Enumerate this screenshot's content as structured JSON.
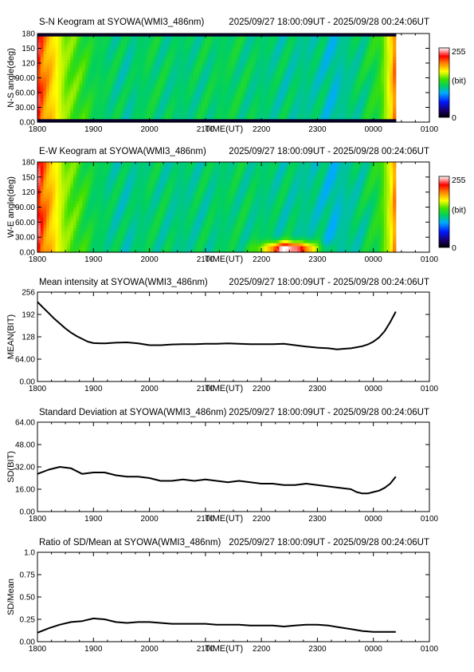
{
  "common": {
    "time_range": "2025/09/27 18:00:09UT - 2025/09/28 00:24:06UT",
    "x_tick_labels": [
      "1800",
      "1900",
      "2000",
      "2100",
      "2200",
      "2300",
      "0000",
      "0100"
    ],
    "xlabel": "TIME(UT)"
  },
  "chart_data": [
    {
      "type": "heatmap",
      "title": "S-N Keogram at SYOWA(WMI3_486nm)",
      "subtitle": "2025/09/27 18:00:09UT - 2025/09/28 00:24:06UT",
      "xlabel": "TIME(UT)",
      "ylabel": "N-S angle(deg)",
      "x_range_hours": [
        18.0,
        25.0
      ],
      "data_end_hours": 24.4,
      "ylim": [
        0,
        180
      ],
      "y_tick_labels": [
        "0.00",
        "30.00",
        "60.00",
        "90.00",
        "120",
        "150",
        "180"
      ],
      "y_tick_values": [
        0,
        30,
        60,
        90,
        120,
        150,
        180
      ],
      "colorbar": {
        "min_label": "0",
        "max_label": "255",
        "unit_label": "(bit)"
      },
      "time_hours": [
        18.0,
        18.1,
        18.3,
        18.5,
        18.8,
        19.0,
        19.3,
        19.6,
        20.0,
        20.5,
        21.0,
        21.5,
        22.0,
        22.5,
        23.0,
        23.3,
        23.5,
        23.8,
        24.1,
        24.3,
        24.4
      ],
      "mean_intensity": [
        230,
        200,
        175,
        150,
        135,
        120,
        115,
        110,
        118,
        112,
        115,
        118,
        112,
        110,
        108,
        100,
        108,
        115,
        130,
        170,
        210
      ],
      "edge_darkening": true
    },
    {
      "type": "heatmap",
      "title": "E-W Keogram at SYOWA(WMI3_486nm)",
      "subtitle": "2025/09/27 18:00:09UT - 2025/09/28 00:24:06UT",
      "xlabel": "TIME(UT)",
      "ylabel": "W-E angle(deg)",
      "x_range_hours": [
        18.0,
        25.0
      ],
      "data_end_hours": 24.4,
      "ylim": [
        0,
        180
      ],
      "y_tick_labels": [
        "0.00",
        "30.00",
        "60.00",
        "90.00",
        "120",
        "150",
        "180"
      ],
      "y_tick_values": [
        0,
        30,
        60,
        90,
        120,
        150,
        180
      ],
      "colorbar": {
        "min_label": "0",
        "max_label": "255",
        "unit_label": "(bit)"
      },
      "time_hours": [
        18.0,
        18.1,
        18.3,
        18.5,
        18.8,
        19.0,
        19.3,
        19.6,
        20.0,
        20.5,
        21.0,
        21.5,
        22.0,
        22.5,
        23.0,
        23.3,
        23.5,
        23.8,
        24.1,
        24.3,
        24.4
      ],
      "mean_intensity": [
        235,
        205,
        175,
        150,
        132,
        118,
        112,
        108,
        115,
        110,
        112,
        115,
        112,
        110,
        106,
        98,
        106,
        112,
        128,
        165,
        205
      ],
      "edge_darkening": false,
      "bright_spot": {
        "time_hours": 22.5,
        "angle_deg": 6,
        "label": ""
      }
    },
    {
      "type": "line",
      "title": "Mean intensity at SYOWA(WMI3_486nm)",
      "subtitle": "2025/09/27 18:00:09UT - 2025/09/28 00:24:06UT",
      "xlabel": "TIME(UT)",
      "ylabel": "MEAN(BIT)",
      "x_range_hours": [
        18.0,
        25.0
      ],
      "ylim": [
        0,
        256
      ],
      "y_tick_labels": [
        "0.00",
        "64.00",
        "128",
        "192",
        "256"
      ],
      "y_tick_values": [
        0,
        64,
        128,
        192,
        256
      ],
      "x": [
        18.0,
        18.1,
        18.2,
        18.3,
        18.4,
        18.5,
        18.6,
        18.7,
        18.8,
        18.9,
        19.0,
        19.2,
        19.4,
        19.6,
        19.8,
        20.0,
        20.2,
        20.4,
        20.6,
        20.8,
        21.0,
        21.2,
        21.4,
        21.6,
        21.8,
        22.0,
        22.2,
        22.4,
        22.6,
        22.8,
        23.0,
        23.2,
        23.35,
        23.5,
        23.6,
        23.7,
        23.8,
        23.9,
        24.0,
        24.1,
        24.2,
        24.3,
        24.4
      ],
      "y": [
        228,
        212,
        196,
        180,
        166,
        152,
        140,
        130,
        122,
        114,
        110,
        109,
        111,
        112,
        109,
        104,
        104,
        106,
        107,
        107,
        108,
        108,
        109,
        108,
        107,
        107,
        107,
        108,
        104,
        100,
        97,
        95,
        92,
        94,
        95,
        98,
        101,
        106,
        114,
        126,
        144,
        170,
        200
      ]
    },
    {
      "type": "line",
      "title": "Standard Deviation at SYOWA(WMI3_486nm)",
      "subtitle": "2025/09/27 18:00:09UT - 2025/09/28 00:24:06UT",
      "xlabel": "TIME(UT)",
      "ylabel": "SD(BIT)",
      "x_range_hours": [
        18.0,
        25.0
      ],
      "ylim": [
        0,
        64
      ],
      "y_tick_labels": [
        "0.00",
        "16.00",
        "32.00",
        "48.00",
        "64.00"
      ],
      "y_tick_values": [
        0,
        16,
        32,
        48,
        64
      ],
      "x": [
        18.0,
        18.2,
        18.4,
        18.6,
        18.7,
        18.8,
        19.0,
        19.2,
        19.4,
        19.6,
        19.8,
        20.0,
        20.2,
        20.4,
        20.6,
        20.8,
        21.0,
        21.2,
        21.4,
        21.6,
        21.8,
        22.0,
        22.2,
        22.4,
        22.6,
        22.8,
        23.0,
        23.2,
        23.4,
        23.6,
        23.7,
        23.8,
        23.9,
        24.0,
        24.1,
        24.2,
        24.3,
        24.4
      ],
      "y": [
        27,
        30,
        32,
        31,
        29,
        27,
        28,
        28,
        26,
        25,
        25,
        24,
        22,
        22,
        23,
        22,
        23,
        22,
        21,
        22,
        21,
        20,
        20,
        19,
        19,
        20,
        19,
        18,
        17,
        16,
        14,
        13,
        13,
        14,
        15,
        17,
        20,
        25
      ]
    },
    {
      "type": "line",
      "title": "Ratio of SD/Mean at SYOWA(WMI3_486nm)",
      "subtitle": "2025/09/27 18:00:09UT - 2025/09/28 00:24:06UT",
      "xlabel": "TIME(UT)",
      "ylabel": "SD/Mean",
      "x_range_hours": [
        18.0,
        25.0
      ],
      "ylim": [
        0,
        1.0
      ],
      "y_tick_labels": [
        "0.00",
        "0.25",
        "0.50",
        "0.75",
        "1.0"
      ],
      "y_tick_values": [
        0,
        0.25,
        0.5,
        0.75,
        1.0
      ],
      "x": [
        18.0,
        18.2,
        18.4,
        18.6,
        18.8,
        19.0,
        19.2,
        19.4,
        19.6,
        19.8,
        20.0,
        20.2,
        20.4,
        20.6,
        20.8,
        21.0,
        21.2,
        21.4,
        21.6,
        21.8,
        22.0,
        22.2,
        22.4,
        22.6,
        22.8,
        23.0,
        23.2,
        23.4,
        23.6,
        23.8,
        24.0,
        24.2,
        24.4
      ],
      "y": [
        0.1,
        0.15,
        0.19,
        0.22,
        0.23,
        0.26,
        0.25,
        0.22,
        0.21,
        0.22,
        0.22,
        0.21,
        0.2,
        0.2,
        0.2,
        0.2,
        0.19,
        0.19,
        0.19,
        0.18,
        0.18,
        0.18,
        0.17,
        0.18,
        0.19,
        0.19,
        0.18,
        0.16,
        0.14,
        0.12,
        0.11,
        0.11,
        0.11
      ]
    }
  ]
}
